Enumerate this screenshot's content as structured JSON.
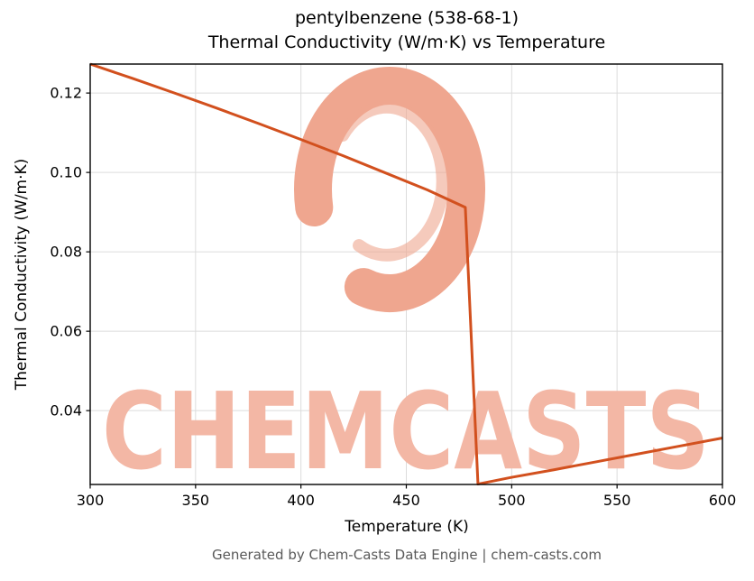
{
  "title_line1": "pentylbenzene (538-68-1)",
  "title_line2": "Thermal Conductivity (W/m·K) vs Temperature",
  "footer": "Generated by Chem-Casts Data Engine | chem-casts.com",
  "watermark": {
    "text": "CHEMCASTS",
    "text_color": "#f3b7a5",
    "logo_color": "#efa68f"
  },
  "chart_data": {
    "type": "line",
    "title": "pentylbenzene (538-68-1)\nThermal Conductivity (W/m·K) vs Temperature",
    "xlabel": "Temperature (K)",
    "ylabel": "Thermal Conductivity (W/m·K)",
    "xlim": [
      300,
      600
    ],
    "ylim": [
      0.0214,
      0.1273
    ],
    "xticks": [
      300,
      350,
      400,
      450,
      500,
      550,
      600
    ],
    "xtick_labels": [
      "300",
      "350",
      "400",
      "450",
      "500",
      "550",
      "600"
    ],
    "yticks": [
      0.04,
      0.06,
      0.08,
      0.1,
      0.12
    ],
    "ytick_labels": [
      "0.04",
      "0.06",
      "0.08",
      "0.10",
      "0.12"
    ],
    "grid": true,
    "legend": false,
    "line_color": "#d2501e",
    "line_width": 3,
    "series": [
      {
        "name": "thermal-conductivity",
        "points": [
          [
            300,
            0.1273
          ],
          [
            320,
            0.1237
          ],
          [
            340,
            0.12
          ],
          [
            360,
            0.1162
          ],
          [
            380,
            0.1123
          ],
          [
            400,
            0.1083
          ],
          [
            420,
            0.1042
          ],
          [
            440,
            0.0999
          ],
          [
            460,
            0.0956
          ],
          [
            478,
            0.0912
          ],
          [
            484,
            0.0215
          ],
          [
            500,
            0.0232
          ],
          [
            520,
            0.0251
          ],
          [
            540,
            0.0271
          ],
          [
            560,
            0.0291
          ],
          [
            580,
            0.0311
          ],
          [
            600,
            0.0331
          ]
        ]
      }
    ]
  }
}
